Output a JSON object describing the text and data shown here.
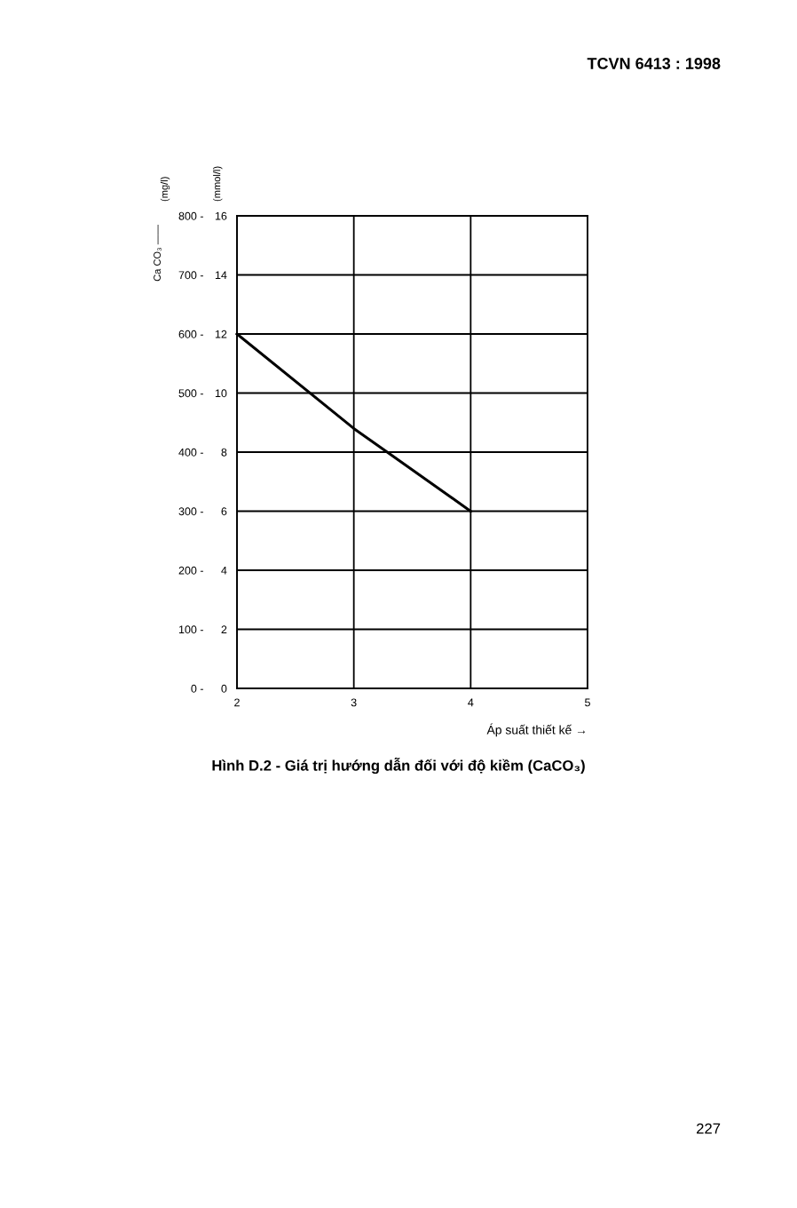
{
  "chart_data": {
    "type": "line",
    "title": "Hình D.2 - Giá trị hướng dẫn đối với độ kiềm (CaCO₃)",
    "xlabel": "Áp suất thiết kế →",
    "ylabel": "(mg/l)",
    "y2label": "(mmol/l)",
    "annotations": [
      "TCVN 6413 : 1998",
      "Ca CO₃ ——",
      "227"
    ],
    "series": [
      {
        "x": [
          2,
          3,
          4
        ],
        "values": [
          600,
          440,
          300
        ],
        "color": "#000000"
      }
    ],
    "xlim": [
      2,
      5
    ],
    "xticks": [
      2,
      3,
      4,
      5
    ],
    "ylim": [
      0,
      800
    ],
    "yticks": [
      {
        "value": 0,
        "label": "0 -"
      },
      {
        "value": 100,
        "label": "100 -"
      },
      {
        "value": 200,
        "label": "200 -"
      },
      {
        "value": 300,
        "label": "300 -"
      },
      {
        "value": 400,
        "label": "400 -"
      },
      {
        "value": 500,
        "label": "500 -"
      },
      {
        "value": 600,
        "label": "600 -"
      },
      {
        "value": 700,
        "label": "700 -"
      },
      {
        "value": 800,
        "label": "800 -"
      }
    ],
    "y2lim": [
      0,
      16
    ],
    "y2ticks": [
      0,
      2,
      4,
      6,
      8,
      10,
      12,
      14,
      16
    ],
    "grid": true,
    "marker": "none",
    "line_style": "solid"
  }
}
